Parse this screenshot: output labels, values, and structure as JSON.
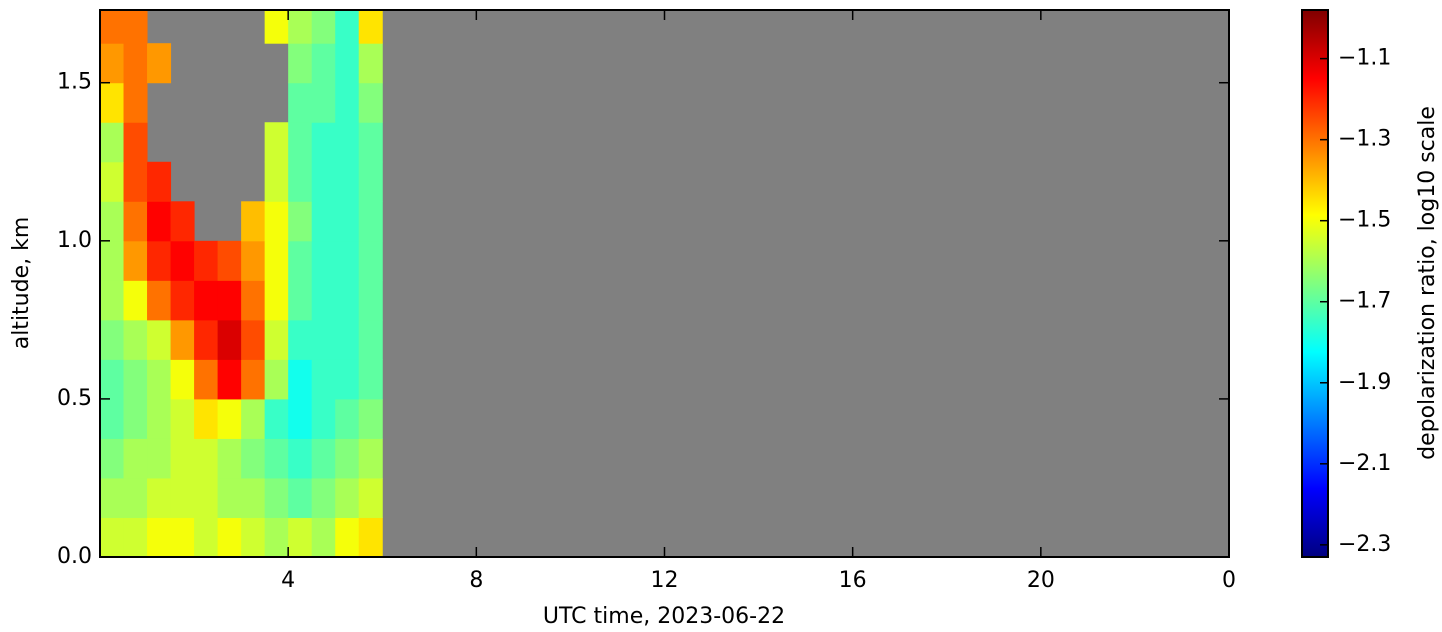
{
  "chart_data": {
    "type": "heatmap",
    "x_label": "UTC time,  2023-06-22",
    "y_label": "altitude, km",
    "colorbar_label": "depolarization ratio, log10 scale",
    "xlim": [
      0,
      24
    ],
    "ylim": [
      0,
      1.73
    ],
    "xticks": [
      4,
      8,
      12,
      16,
      20,
      {
        "value": 24,
        "label": "0"
      }
    ],
    "yticks": [
      {
        "value": 0,
        "label": "0.0"
      },
      0.5,
      {
        "value": 1,
        "label": "1.0"
      },
      1.5
    ],
    "clim": [
      -2.33,
      -0.98
    ],
    "cticks": [
      {
        "value": -1.1,
        "label": "−1.1"
      },
      {
        "value": -1.3,
        "label": "−1.3"
      },
      {
        "value": -1.5,
        "label": "−1.5"
      },
      {
        "value": -1.7,
        "label": "−1.7"
      },
      {
        "value": -1.9,
        "label": "−1.9"
      },
      {
        "value": -2.1,
        "label": "−2.1"
      },
      {
        "value": -2.3,
        "label": "−2.3"
      }
    ],
    "colormap": "jet",
    "background": "#808080",
    "xbins": [
      0,
      0.5,
      1,
      1.5,
      2,
      2.5,
      3,
      3.5,
      4,
      4.5,
      5,
      5.5,
      6
    ],
    "ybins": [
      0,
      0.125,
      0.25,
      0.375,
      0.5,
      0.625,
      0.75,
      0.875,
      1,
      1.125,
      1.25,
      1.375,
      1.5,
      1.625,
      1.75
    ],
    "z": [
      [
        -1.55,
        -1.55,
        -1.5,
        -1.5,
        -1.55,
        -1.5,
        -1.55,
        -1.6,
        -1.55,
        -1.6,
        -1.5,
        -1.45
      ],
      [
        -1.6,
        -1.6,
        -1.55,
        -1.55,
        -1.55,
        -1.6,
        -1.6,
        -1.65,
        -1.7,
        -1.65,
        -1.6,
        -1.55
      ],
      [
        -1.65,
        -1.6,
        -1.6,
        -1.55,
        -1.55,
        -1.6,
        -1.65,
        -1.7,
        -1.75,
        -1.7,
        -1.65,
        -1.6
      ],
      [
        -1.7,
        -1.65,
        -1.6,
        -1.55,
        -1.45,
        -1.5,
        -1.6,
        -1.75,
        -1.8,
        -1.75,
        -1.7,
        -1.65
      ],
      [
        -1.7,
        -1.65,
        -1.6,
        -1.5,
        -1.3,
        -1.15,
        -1.3,
        -1.6,
        -1.8,
        -1.75,
        -1.75,
        -1.7
      ],
      [
        -1.65,
        -1.6,
        -1.55,
        -1.35,
        -1.2,
        -1.1,
        -1.25,
        -1.55,
        -1.75,
        -1.75,
        -1.75,
        -1.7
      ],
      [
        -1.6,
        -1.5,
        -1.3,
        -1.2,
        -1.15,
        -1.15,
        -1.3,
        -1.5,
        -1.7,
        -1.75,
        -1.75,
        -1.7
      ],
      [
        -1.6,
        -1.35,
        -1.2,
        -1.15,
        -1.2,
        -1.25,
        -1.35,
        -1.5,
        -1.7,
        -1.75,
        -1.75,
        -1.7
      ],
      [
        -1.6,
        -1.3,
        -1.15,
        -1.2,
        null,
        null,
        -1.4,
        -1.5,
        -1.65,
        -1.75,
        -1.75,
        -1.7
      ],
      [
        -1.55,
        -1.25,
        -1.2,
        null,
        null,
        null,
        null,
        -1.55,
        -1.7,
        -1.75,
        -1.75,
        -1.7
      ],
      [
        -1.6,
        -1.25,
        null,
        null,
        null,
        null,
        null,
        -1.55,
        -1.7,
        -1.75,
        -1.75,
        -1.7
      ],
      [
        -1.45,
        -1.3,
        null,
        null,
        null,
        null,
        null,
        null,
        -1.7,
        -1.7,
        -1.75,
        -1.65
      ],
      [
        -1.35,
        -1.3,
        -1.35,
        null,
        null,
        null,
        null,
        null,
        -1.65,
        -1.7,
        -1.75,
        -1.6
      ],
      [
        -1.3,
        -1.3,
        null,
        null,
        null,
        null,
        null,
        -1.5,
        -1.6,
        -1.65,
        -1.75,
        -1.45
      ]
    ]
  }
}
